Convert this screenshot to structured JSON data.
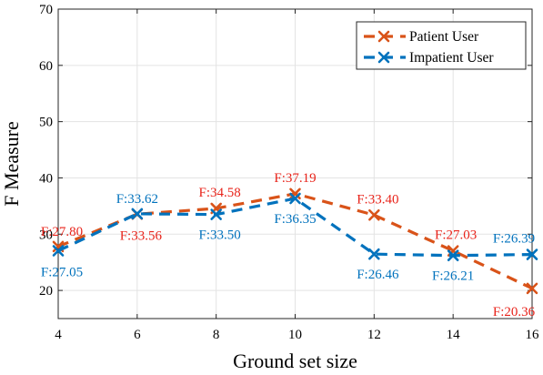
{
  "chart_data": {
    "type": "line",
    "xlabel": "Ground set size",
    "ylabel": "F Measure",
    "x": [
      4,
      6,
      8,
      10,
      12,
      14,
      16
    ],
    "xlim": [
      4,
      16
    ],
    "ylim": [
      15,
      70
    ],
    "xticks": [
      "4",
      "6",
      "8",
      "10",
      "12",
      "14",
      "16"
    ],
    "yticks": [
      "20",
      "30",
      "40",
      "50",
      "60",
      "70"
    ],
    "grid": true,
    "legend_position": "top-right",
    "series": [
      {
        "name": "Patient User",
        "color": "#D95319",
        "label_color": "#E8231A",
        "marker": "x",
        "line_style": "dashed",
        "values": [
          27.8,
          33.56,
          34.58,
          37.19,
          33.4,
          27.03,
          20.36
        ],
        "labels": [
          "F:27.80",
          "F:33.56",
          "F:34.58",
          "F:37.19",
          "F:33.40",
          "F:27.03",
          "F:20.36"
        ]
      },
      {
        "name": "Impatient User",
        "color": "#0072BD",
        "label_color": "#0072BD",
        "marker": "x",
        "line_style": "dashed",
        "values": [
          27.05,
          33.62,
          33.5,
          36.35,
          26.46,
          26.21,
          26.39
        ],
        "labels": [
          "F:27.05",
          "F:33.62",
          "F:33.50",
          "F:36.35",
          "F:26.46",
          "F:26.21",
          "F:26.39"
        ]
      }
    ]
  }
}
